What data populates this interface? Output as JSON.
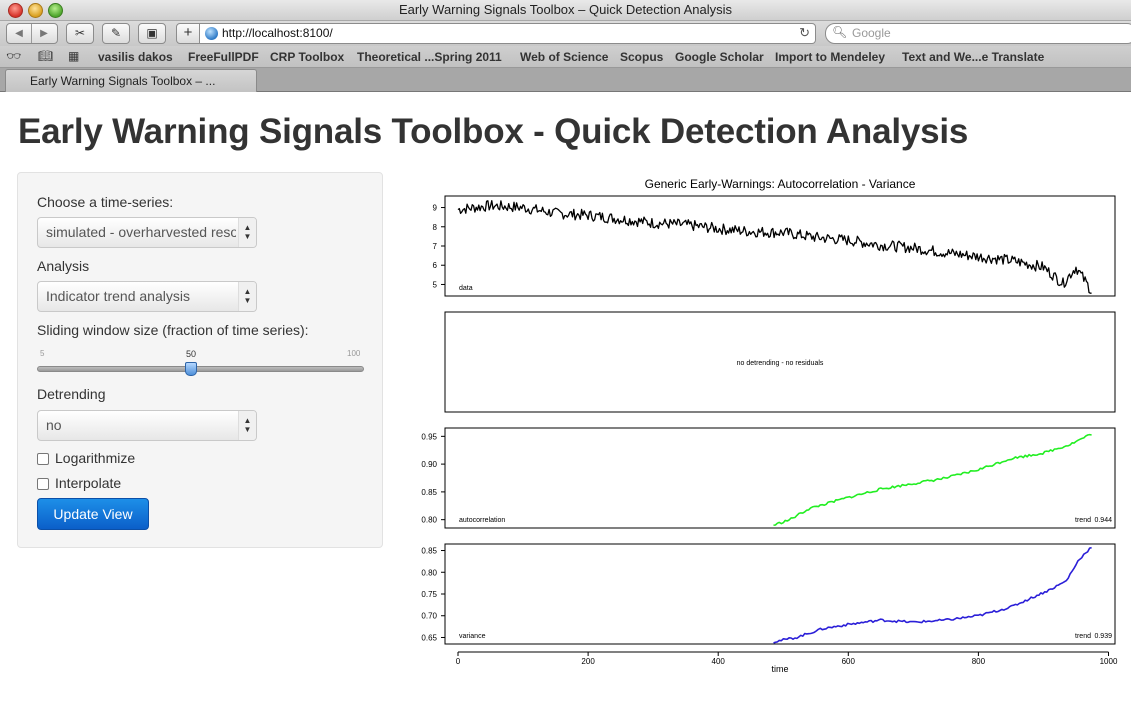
{
  "window": {
    "title": "Early Warning Signals Toolbox – Quick Detection Analysis"
  },
  "toolbar": {
    "url": "http://localhost:8100/",
    "search_placeholder": "Google"
  },
  "bookmarks": [
    "vasilis dakos",
    "FreeFullPDF",
    "CRP Toolbox",
    "Theoretical ...Spring 2011",
    "Web of Science",
    "Scopus",
    "Google Scholar",
    "Import to Mendeley",
    "Text and We...e Translate"
  ],
  "tab": {
    "label": "Early Warning Signals Toolbox – ..."
  },
  "page": {
    "title": "Early Warning Signals Toolbox - Quick Detection Analysis"
  },
  "sidebar": {
    "series_label": "Choose a time-series:",
    "series_value": "simulated - overharvested resource",
    "analysis_label": "Analysis",
    "analysis_value": "Indicator trend analysis",
    "window_label": "Sliding window size (fraction of time series):",
    "window_min": "5",
    "window_max": "100",
    "window_value": "50",
    "window_fraction": 0.47,
    "detrending_label": "Detrending",
    "detrending_value": "no",
    "logarithmize_label": "Logarithmize",
    "interpolate_label": "Interpolate",
    "update_button": "Update View"
  },
  "chart_data": {
    "type": "line",
    "title": "Generic Early-Warnings: Autocorrelation - Variance",
    "xlabel": "time",
    "xlim": [
      -20,
      1010
    ],
    "x_ticks": [
      "0",
      "200",
      "400",
      "600",
      "800",
      "1000"
    ],
    "panels": [
      {
        "name": "data",
        "color": "#000000",
        "ylim": [
          4.4,
          9.6
        ],
        "y_ticks": [
          "9",
          "8",
          "7",
          "6",
          "5"
        ],
        "x": [
          0,
          50,
          100,
          150,
          200,
          250,
          300,
          350,
          400,
          450,
          500,
          550,
          600,
          650,
          700,
          750,
          800,
          850,
          900,
          930,
          950,
          975
        ],
        "values": [
          8.9,
          9.1,
          9.0,
          8.7,
          8.6,
          8.4,
          8.2,
          8.1,
          7.9,
          7.75,
          7.7,
          7.45,
          7.3,
          7.05,
          6.9,
          6.65,
          6.45,
          6.25,
          5.9,
          5.05,
          5.9,
          4.6
        ]
      },
      {
        "name": "residuals",
        "annotation": "no detrending - no residuals"
      },
      {
        "name": "autocorrelation",
        "color": "#22ee22",
        "ylim": [
          0.785,
          0.965
        ],
        "y_ticks": [
          "0.95",
          "0.90",
          "0.85",
          "0.80"
        ],
        "trend_label": "trend",
        "trend_value": "0.944",
        "x": [
          485,
          510,
          540,
          570,
          600,
          650,
          700,
          750,
          800,
          850,
          900,
          940,
          975
        ],
        "values": [
          0.79,
          0.8,
          0.82,
          0.83,
          0.84,
          0.855,
          0.865,
          0.875,
          0.89,
          0.91,
          0.92,
          0.935,
          0.955
        ]
      },
      {
        "name": "variance",
        "color": "#2b1fd8",
        "ylim": [
          0.635,
          0.865
        ],
        "y_ticks": [
          "0.85",
          "0.80",
          "0.75",
          "0.70",
          "0.65"
        ],
        "trend_label": "trend",
        "trend_value": "0.939",
        "x": [
          485,
          520,
          560,
          600,
          650,
          700,
          750,
          800,
          850,
          880,
          910,
          935,
          955,
          975
        ],
        "values": [
          0.64,
          0.65,
          0.67,
          0.68,
          0.69,
          0.685,
          0.69,
          0.7,
          0.72,
          0.74,
          0.76,
          0.78,
          0.83,
          0.86
        ]
      }
    ]
  },
  "colors": {
    "primary_button": "#0b6fd8",
    "panel_bg": "#f5f5f5"
  }
}
